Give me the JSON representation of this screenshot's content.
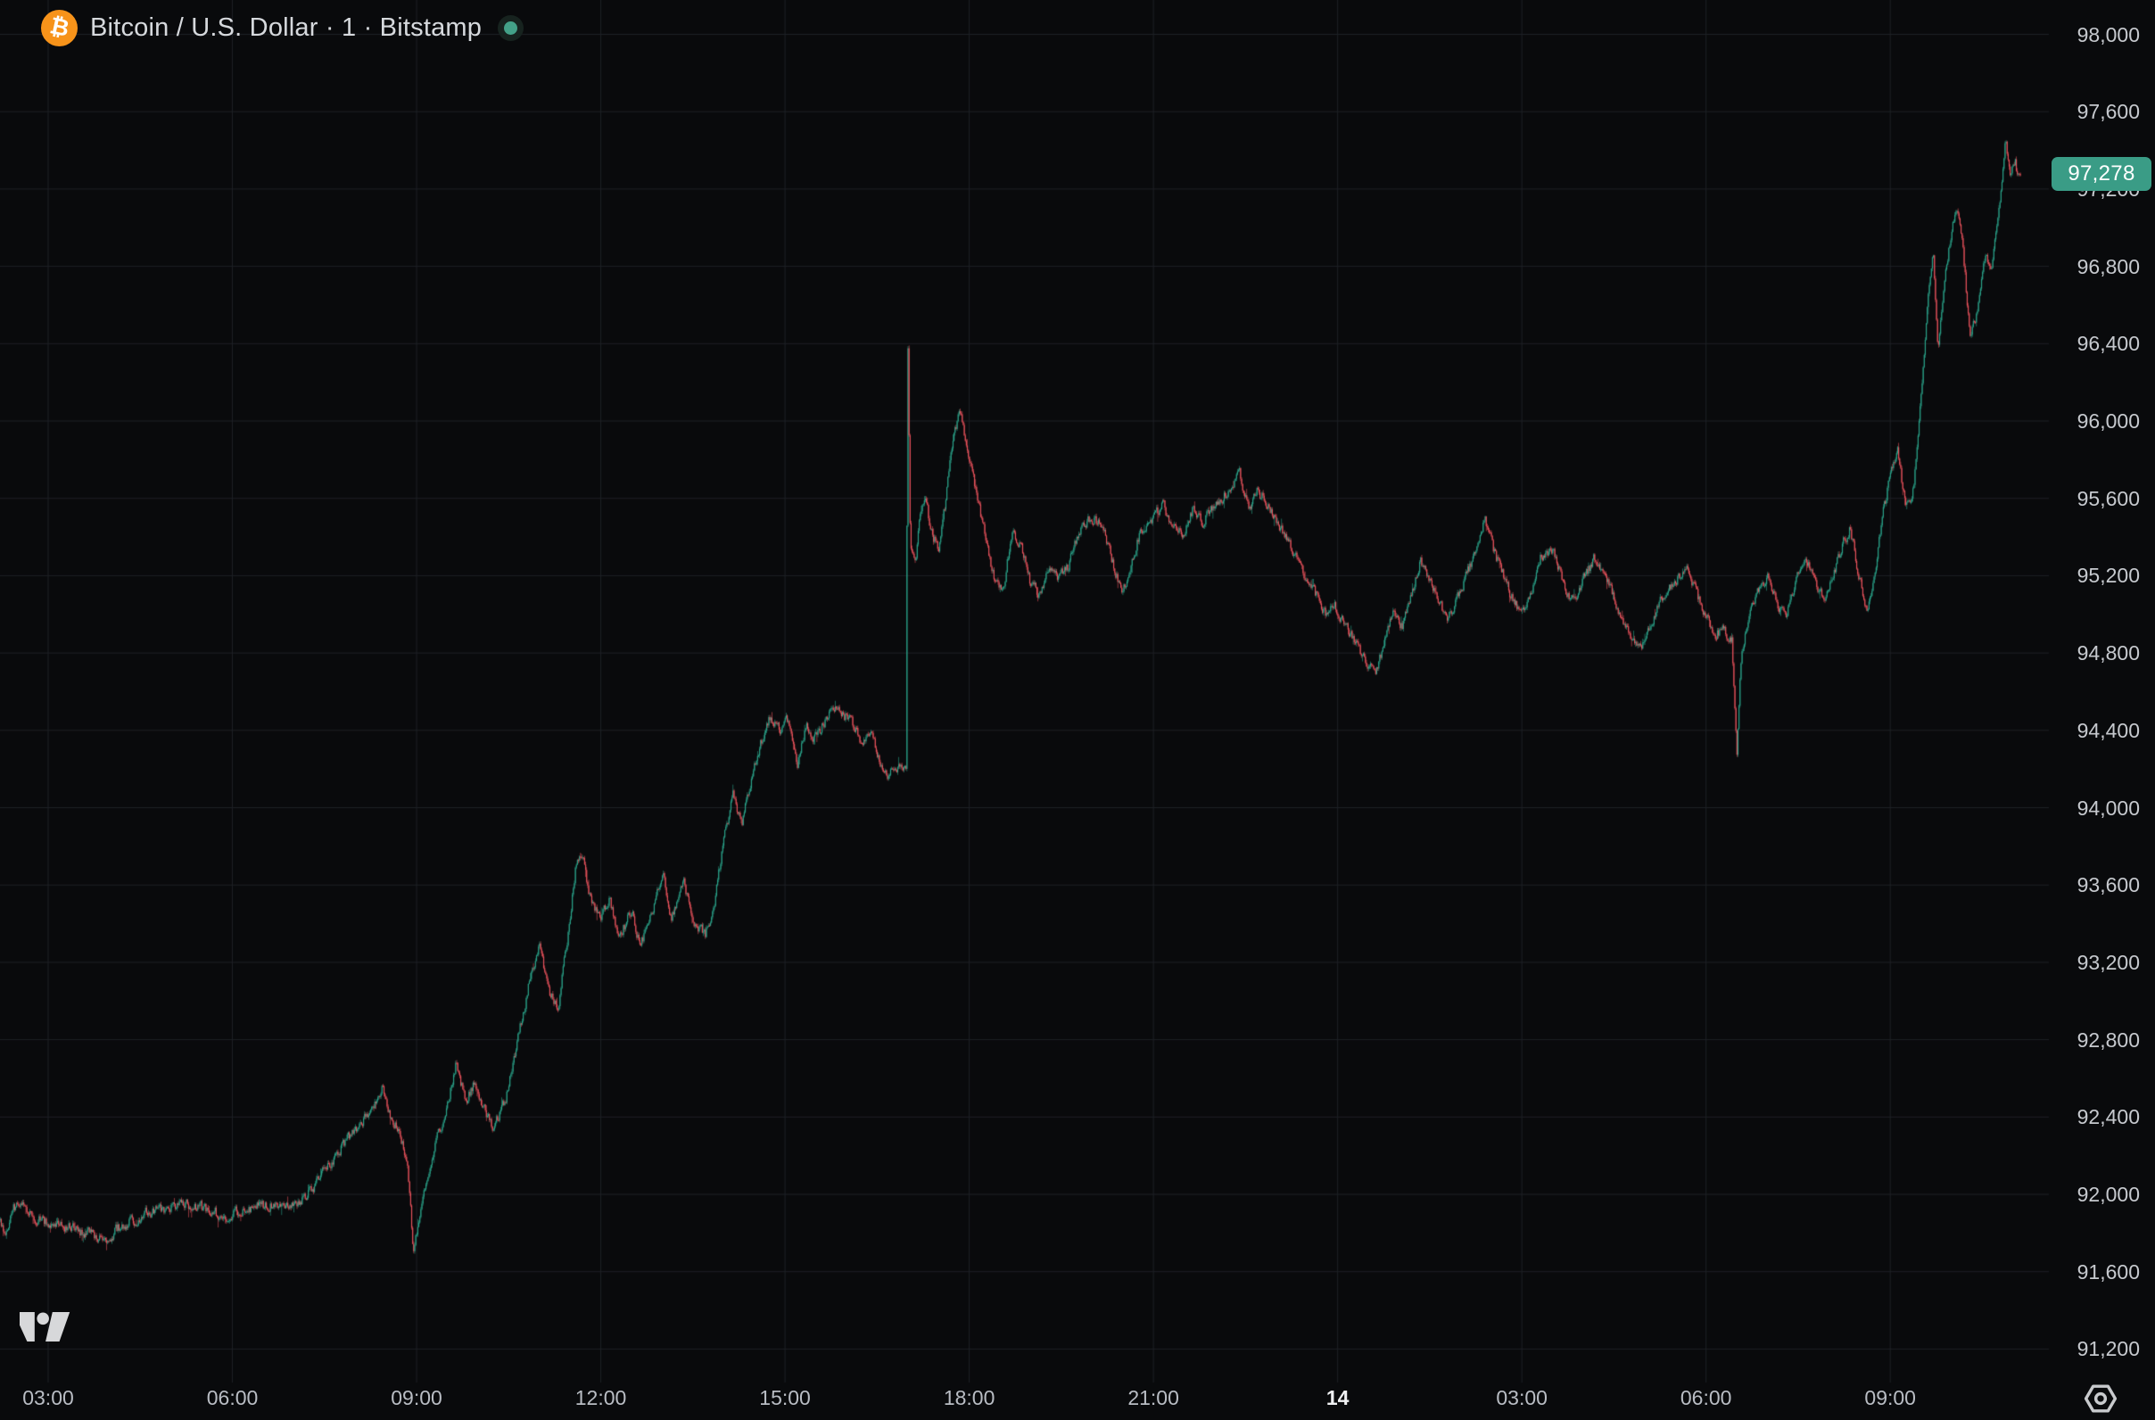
{
  "header": {
    "title": "Bitcoin / U.S. Dollar · 1 · Bitstamp",
    "coin_symbol": "₿",
    "market_status": "open"
  },
  "last_price": {
    "label": "97,278",
    "value": 97278
  },
  "colors": {
    "background": "#090a0c",
    "grid": "#1e2126",
    "up": "#2aa38a",
    "down": "#e9525c",
    "axis_text": "#c6c9ce",
    "time_text": "#b9bdc4",
    "title_text": "#d6d9dd",
    "badge_bg": "#3a9c86",
    "badge_text": "#ffffff",
    "bitcoin_orange": "#f7931a",
    "status_dot": "#43a188",
    "status_ring": "#17231f",
    "logo": "#d7d8da",
    "gear": "#c8cacd"
  },
  "chart_data": {
    "type": "candlestick",
    "title": "Bitcoin / U.S. Dollar · 1 · Bitstamp",
    "symbol": "BTCUSD",
    "interval": "1",
    "exchange": "Bitstamp",
    "last_price": 97278,
    "y_axis": {
      "step": 400,
      "ticks": [
        98000,
        97600,
        97200,
        96800,
        96400,
        96000,
        95600,
        95200,
        94800,
        94400,
        94000,
        93600,
        93200,
        92800,
        92400,
        92000,
        91600,
        91200
      ],
      "tick_labels": [
        "98,000",
        "97,600",
        "97,200",
        "96,800",
        "96,400",
        "96,000",
        "95,600",
        "95,200",
        "94,800",
        "94,400",
        "94,000",
        "93,600",
        "93,200",
        "92,800",
        "92,400",
        "92,000",
        "91,600",
        "91,200"
      ],
      "visible_range": [
        91050,
        98180
      ]
    },
    "x_axis": {
      "tick_labels": [
        "03:00",
        "06:00",
        "09:00",
        "12:00",
        "15:00",
        "18:00",
        "21:00",
        "14",
        "03:00",
        "06:00",
        "09:00"
      ],
      "tick_hours": [
        3,
        6,
        9,
        12,
        15,
        18,
        21,
        24,
        27,
        30,
        33
      ],
      "day_boundary_index": 7,
      "grid": true
    },
    "price_path": [
      [
        2.17,
        91890
      ],
      [
        2.3,
        91800
      ],
      [
        2.45,
        91930
      ],
      [
        2.6,
        91950
      ],
      [
        2.8,
        91870
      ],
      [
        3.0,
        91855
      ],
      [
        3.2,
        91840
      ],
      [
        3.45,
        91820
      ],
      [
        3.7,
        91790
      ],
      [
        3.95,
        91775
      ],
      [
        4.2,
        91840
      ],
      [
        4.45,
        91880
      ],
      [
        4.7,
        91910
      ],
      [
        5.0,
        91930
      ],
      [
        5.3,
        91950
      ],
      [
        5.6,
        91920
      ],
      [
        5.85,
        91880
      ],
      [
        6.1,
        91905
      ],
      [
        6.35,
        91940
      ],
      [
        6.6,
        91950
      ],
      [
        6.85,
        91940
      ],
      [
        7.1,
        91965
      ],
      [
        7.35,
        92050
      ],
      [
        7.6,
        92160
      ],
      [
        7.85,
        92280
      ],
      [
        8.05,
        92350
      ],
      [
        8.25,
        92440
      ],
      [
        8.45,
        92550
      ],
      [
        8.55,
        92430
      ],
      [
        8.7,
        92330
      ],
      [
        8.85,
        92180
      ],
      [
        8.95,
        91680
      ],
      [
        9.05,
        91900
      ],
      [
        9.2,
        92100
      ],
      [
        9.35,
        92300
      ],
      [
        9.5,
        92460
      ],
      [
        9.65,
        92680
      ],
      [
        9.8,
        92480
      ],
      [
        9.95,
        92580
      ],
      [
        10.1,
        92450
      ],
      [
        10.25,
        92350
      ],
      [
        10.45,
        92480
      ],
      [
        10.65,
        92800
      ],
      [
        10.85,
        93120
      ],
      [
        11.0,
        93300
      ],
      [
        11.15,
        93050
      ],
      [
        11.3,
        92960
      ],
      [
        11.45,
        93300
      ],
      [
        11.6,
        93720
      ],
      [
        11.7,
        93750
      ],
      [
        11.85,
        93500
      ],
      [
        12.0,
        93420
      ],
      [
        12.15,
        93520
      ],
      [
        12.3,
        93340
      ],
      [
        12.5,
        93460
      ],
      [
        12.65,
        93290
      ],
      [
        12.85,
        93470
      ],
      [
        13.0,
        93680
      ],
      [
        13.15,
        93440
      ],
      [
        13.35,
        93620
      ],
      [
        13.5,
        93410
      ],
      [
        13.7,
        93340
      ],
      [
        13.85,
        93500
      ],
      [
        14.0,
        93820
      ],
      [
        14.15,
        94060
      ],
      [
        14.3,
        93920
      ],
      [
        14.45,
        94150
      ],
      [
        14.6,
        94330
      ],
      [
        14.75,
        94470
      ],
      [
        14.9,
        94400
      ],
      [
        15.05,
        94450
      ],
      [
        15.2,
        94230
      ],
      [
        15.35,
        94430
      ],
      [
        15.5,
        94360
      ],
      [
        15.65,
        94450
      ],
      [
        15.8,
        94530
      ],
      [
        15.95,
        94490
      ],
      [
        16.1,
        94430
      ],
      [
        16.25,
        94330
      ],
      [
        16.4,
        94410
      ],
      [
        16.55,
        94240
      ],
      [
        16.7,
        94170
      ],
      [
        16.85,
        94210
      ],
      [
        16.97,
        94200
      ],
      [
        17.0,
        96470
      ],
      [
        17.04,
        95380
      ],
      [
        17.12,
        95250
      ],
      [
        17.2,
        95500
      ],
      [
        17.3,
        95600
      ],
      [
        17.38,
        95420
      ],
      [
        17.5,
        95350
      ],
      [
        17.6,
        95550
      ],
      [
        17.72,
        95850
      ],
      [
        17.85,
        96060
      ],
      [
        17.95,
        95880
      ],
      [
        18.1,
        95650
      ],
      [
        18.25,
        95420
      ],
      [
        18.4,
        95200
      ],
      [
        18.55,
        95120
      ],
      [
        18.7,
        95440
      ],
      [
        18.85,
        95350
      ],
      [
        19.0,
        95160
      ],
      [
        19.15,
        95100
      ],
      [
        19.3,
        95260
      ],
      [
        19.45,
        95180
      ],
      [
        19.6,
        95240
      ],
      [
        19.75,
        95380
      ],
      [
        19.9,
        95480
      ],
      [
        20.05,
        95500
      ],
      [
        20.2,
        95420
      ],
      [
        20.35,
        95250
      ],
      [
        20.5,
        95120
      ],
      [
        20.65,
        95280
      ],
      [
        20.8,
        95440
      ],
      [
        21.0,
        95500
      ],
      [
        21.15,
        95560
      ],
      [
        21.3,
        95480
      ],
      [
        21.5,
        95420
      ],
      [
        21.65,
        95550
      ],
      [
        21.8,
        95480
      ],
      [
        22.0,
        95560
      ],
      [
        22.2,
        95640
      ],
      [
        22.4,
        95740
      ],
      [
        22.55,
        95540
      ],
      [
        22.7,
        95640
      ],
      [
        22.85,
        95580
      ],
      [
        23.0,
        95480
      ],
      [
        23.2,
        95380
      ],
      [
        23.4,
        95250
      ],
      [
        23.6,
        95130
      ],
      [
        23.8,
        95010
      ],
      [
        23.95,
        95060
      ],
      [
        24.1,
        94940
      ],
      [
        24.25,
        94880
      ],
      [
        24.4,
        94790
      ],
      [
        24.6,
        94690
      ],
      [
        24.75,
        94830
      ],
      [
        24.9,
        95030
      ],
      [
        25.05,
        94940
      ],
      [
        25.2,
        95100
      ],
      [
        25.35,
        95270
      ],
      [
        25.5,
        95180
      ],
      [
        25.65,
        95050
      ],
      [
        25.8,
        94990
      ],
      [
        26.0,
        95120
      ],
      [
        26.2,
        95280
      ],
      [
        26.4,
        95500
      ],
      [
        26.55,
        95320
      ],
      [
        26.7,
        95200
      ],
      [
        26.85,
        95080
      ],
      [
        27.0,
        94990
      ],
      [
        27.15,
        95120
      ],
      [
        27.3,
        95290
      ],
      [
        27.5,
        95340
      ],
      [
        27.65,
        95200
      ],
      [
        27.8,
        95060
      ],
      [
        28.0,
        95180
      ],
      [
        28.2,
        95300
      ],
      [
        28.4,
        95180
      ],
      [
        28.55,
        95040
      ],
      [
        28.7,
        94920
      ],
      [
        28.9,
        94810
      ],
      [
        29.1,
        94940
      ],
      [
        29.3,
        95090
      ],
      [
        29.5,
        95180
      ],
      [
        29.7,
        95250
      ],
      [
        29.85,
        95100
      ],
      [
        30.0,
        94990
      ],
      [
        30.15,
        94900
      ],
      [
        30.3,
        94920
      ],
      [
        30.42,
        94880
      ],
      [
        30.5,
        94260
      ],
      [
        30.58,
        94820
      ],
      [
        30.7,
        95000
      ],
      [
        30.85,
        95120
      ],
      [
        31.0,
        95200
      ],
      [
        31.15,
        95060
      ],
      [
        31.3,
        95000
      ],
      [
        31.45,
        95150
      ],
      [
        31.6,
        95300
      ],
      [
        31.75,
        95200
      ],
      [
        31.9,
        95080
      ],
      [
        32.05,
        95180
      ],
      [
        32.2,
        95340
      ],
      [
        32.35,
        95450
      ],
      [
        32.5,
        95180
      ],
      [
        32.62,
        95000
      ],
      [
        32.75,
        95220
      ],
      [
        32.88,
        95520
      ],
      [
        33.0,
        95720
      ],
      [
        33.12,
        95850
      ],
      [
        33.25,
        95550
      ],
      [
        33.38,
        95650
      ],
      [
        33.5,
        96100
      ],
      [
        33.6,
        96600
      ],
      [
        33.7,
        96880
      ],
      [
        33.78,
        96380
      ],
      [
        33.88,
        96700
      ],
      [
        34.0,
        97000
      ],
      [
        34.08,
        97090
      ],
      [
        34.18,
        96920
      ],
      [
        34.3,
        96420
      ],
      [
        34.42,
        96580
      ],
      [
        34.55,
        96850
      ],
      [
        34.65,
        96760
      ],
      [
        34.78,
        97120
      ],
      [
        34.88,
        97470
      ],
      [
        34.96,
        97230
      ],
      [
        35.03,
        97350
      ],
      [
        35.08,
        97260
      ],
      [
        35.12,
        97278
      ]
    ]
  }
}
